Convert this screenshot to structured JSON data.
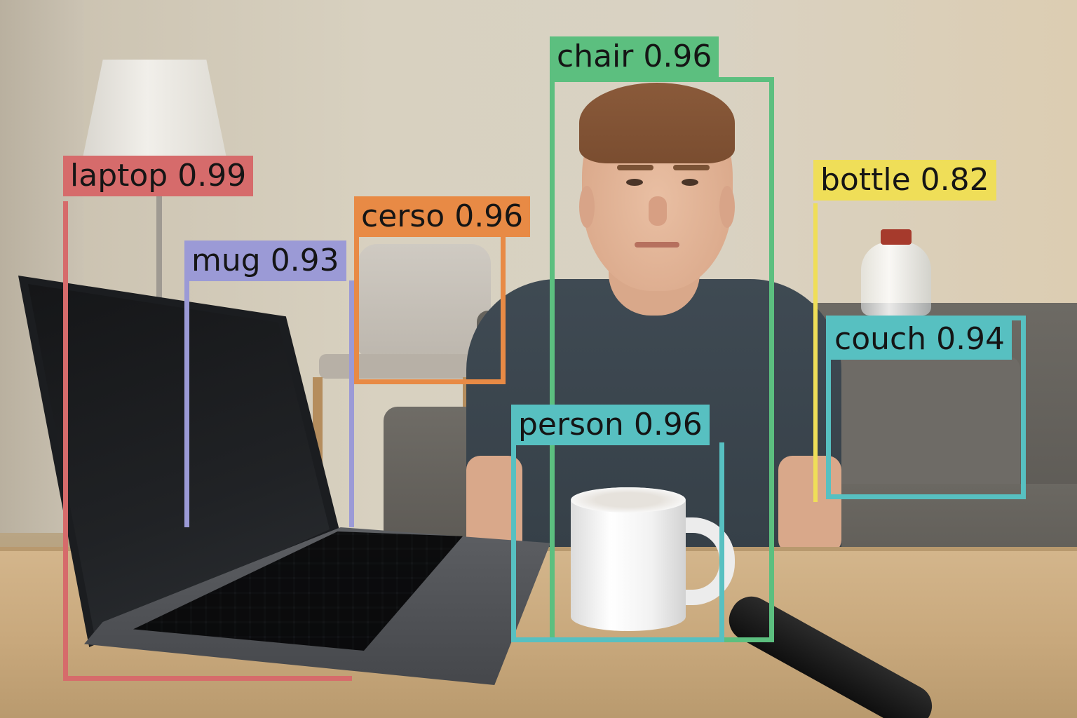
{
  "detections": [
    {
      "class": "laptop",
      "score": "0.99",
      "color": "#d66b6b"
    },
    {
      "class": "mug",
      "score": "0.93",
      "color": "#9b9ad6"
    },
    {
      "class": "cerso",
      "score": "0.96",
      "color": "#e88a45"
    },
    {
      "class": "chair",
      "score": "0.96",
      "color": "#5cbf7f"
    },
    {
      "class": "person",
      "score": "0.96",
      "color": "#57c0c1"
    },
    {
      "class": "bottle",
      "score": "0.82",
      "color": "#efde58"
    },
    {
      "class": "couch",
      "score": "0.94",
      "color": "#57c0c1"
    }
  ]
}
